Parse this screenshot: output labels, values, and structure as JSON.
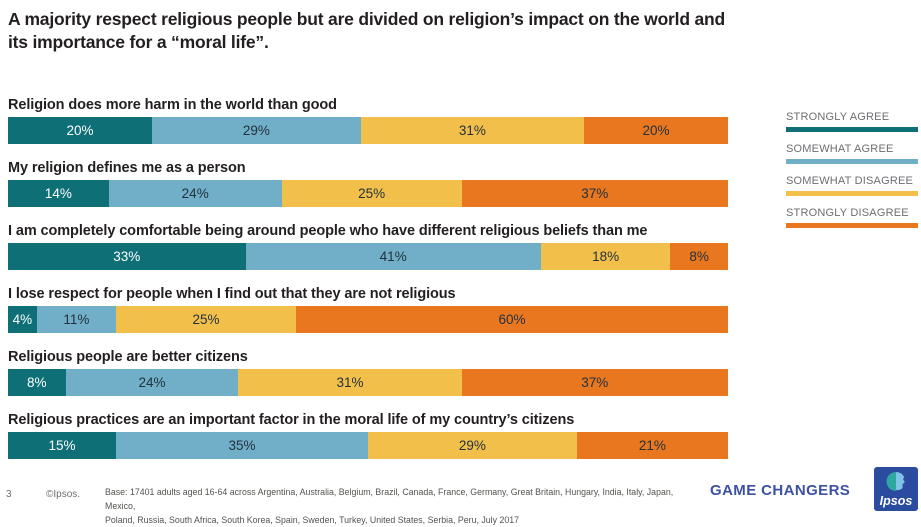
{
  "title": {
    "line1": "A majority respect religious people but are divided on religion’s impact on the world and",
    "line2": "its importance for a “moral life”."
  },
  "chart_data": {
    "type": "bar",
    "stacked": true,
    "orientation": "horizontal",
    "unit": "%",
    "xlim": [
      0,
      100
    ],
    "series": [
      "Strongly agree",
      "Somewhat agree",
      "Somewhat disagree",
      "Strongly disagree"
    ],
    "colors": [
      "#0e6f77",
      "#70afc7",
      "#f2c04a",
      "#e8771f"
    ],
    "rows": [
      {
        "question": "Religion does more harm in the world than good",
        "values": [
          20,
          29,
          31,
          20
        ]
      },
      {
        "question": "My religion defines me as a person",
        "values": [
          14,
          24,
          25,
          37
        ]
      },
      {
        "question": "I am completely comfortable being around people who have different religious beliefs than me",
        "values": [
          33,
          41,
          18,
          8
        ]
      },
      {
        "question": "I lose respect for people when I find out that they are not religious",
        "values": [
          4,
          11,
          25,
          60
        ]
      },
      {
        "question": "Religious people are better citizens",
        "values": [
          8,
          24,
          31,
          37
        ]
      },
      {
        "question": "Religious practices are an important factor in the moral life of my country’s citizens",
        "values": [
          15,
          35,
          29,
          21
        ]
      }
    ],
    "legend_position": "right"
  },
  "legend": {
    "items": [
      {
        "label": "STRONGLY AGREE",
        "color": "#0e6f77"
      },
      {
        "label": "SOMEWHAT AGREE",
        "color": "#70afc7"
      },
      {
        "label": "SOMEWHAT DISAGREE",
        "color": "#f2c04a"
      },
      {
        "label": "STRONGLY DISAGREE",
        "color": "#e8771f"
      }
    ]
  },
  "footer": {
    "page_number": "3",
    "copyright": "©Ipsos.",
    "base_line1": "Base: 17401 adults aged 16-64 across  Argentina, Australia, Belgium, Brazil, Canada, France, Germany, Great Britain, Hungary, India, Italy, Japan, Mexico,",
    "base_line2": "Poland, Russia, South Africa, South Korea, Spain, Sweden, Turkey, United States, Serbia, Peru, July 2017",
    "brand": "GAME CHANGERS",
    "logo_text": "Ipsos"
  }
}
